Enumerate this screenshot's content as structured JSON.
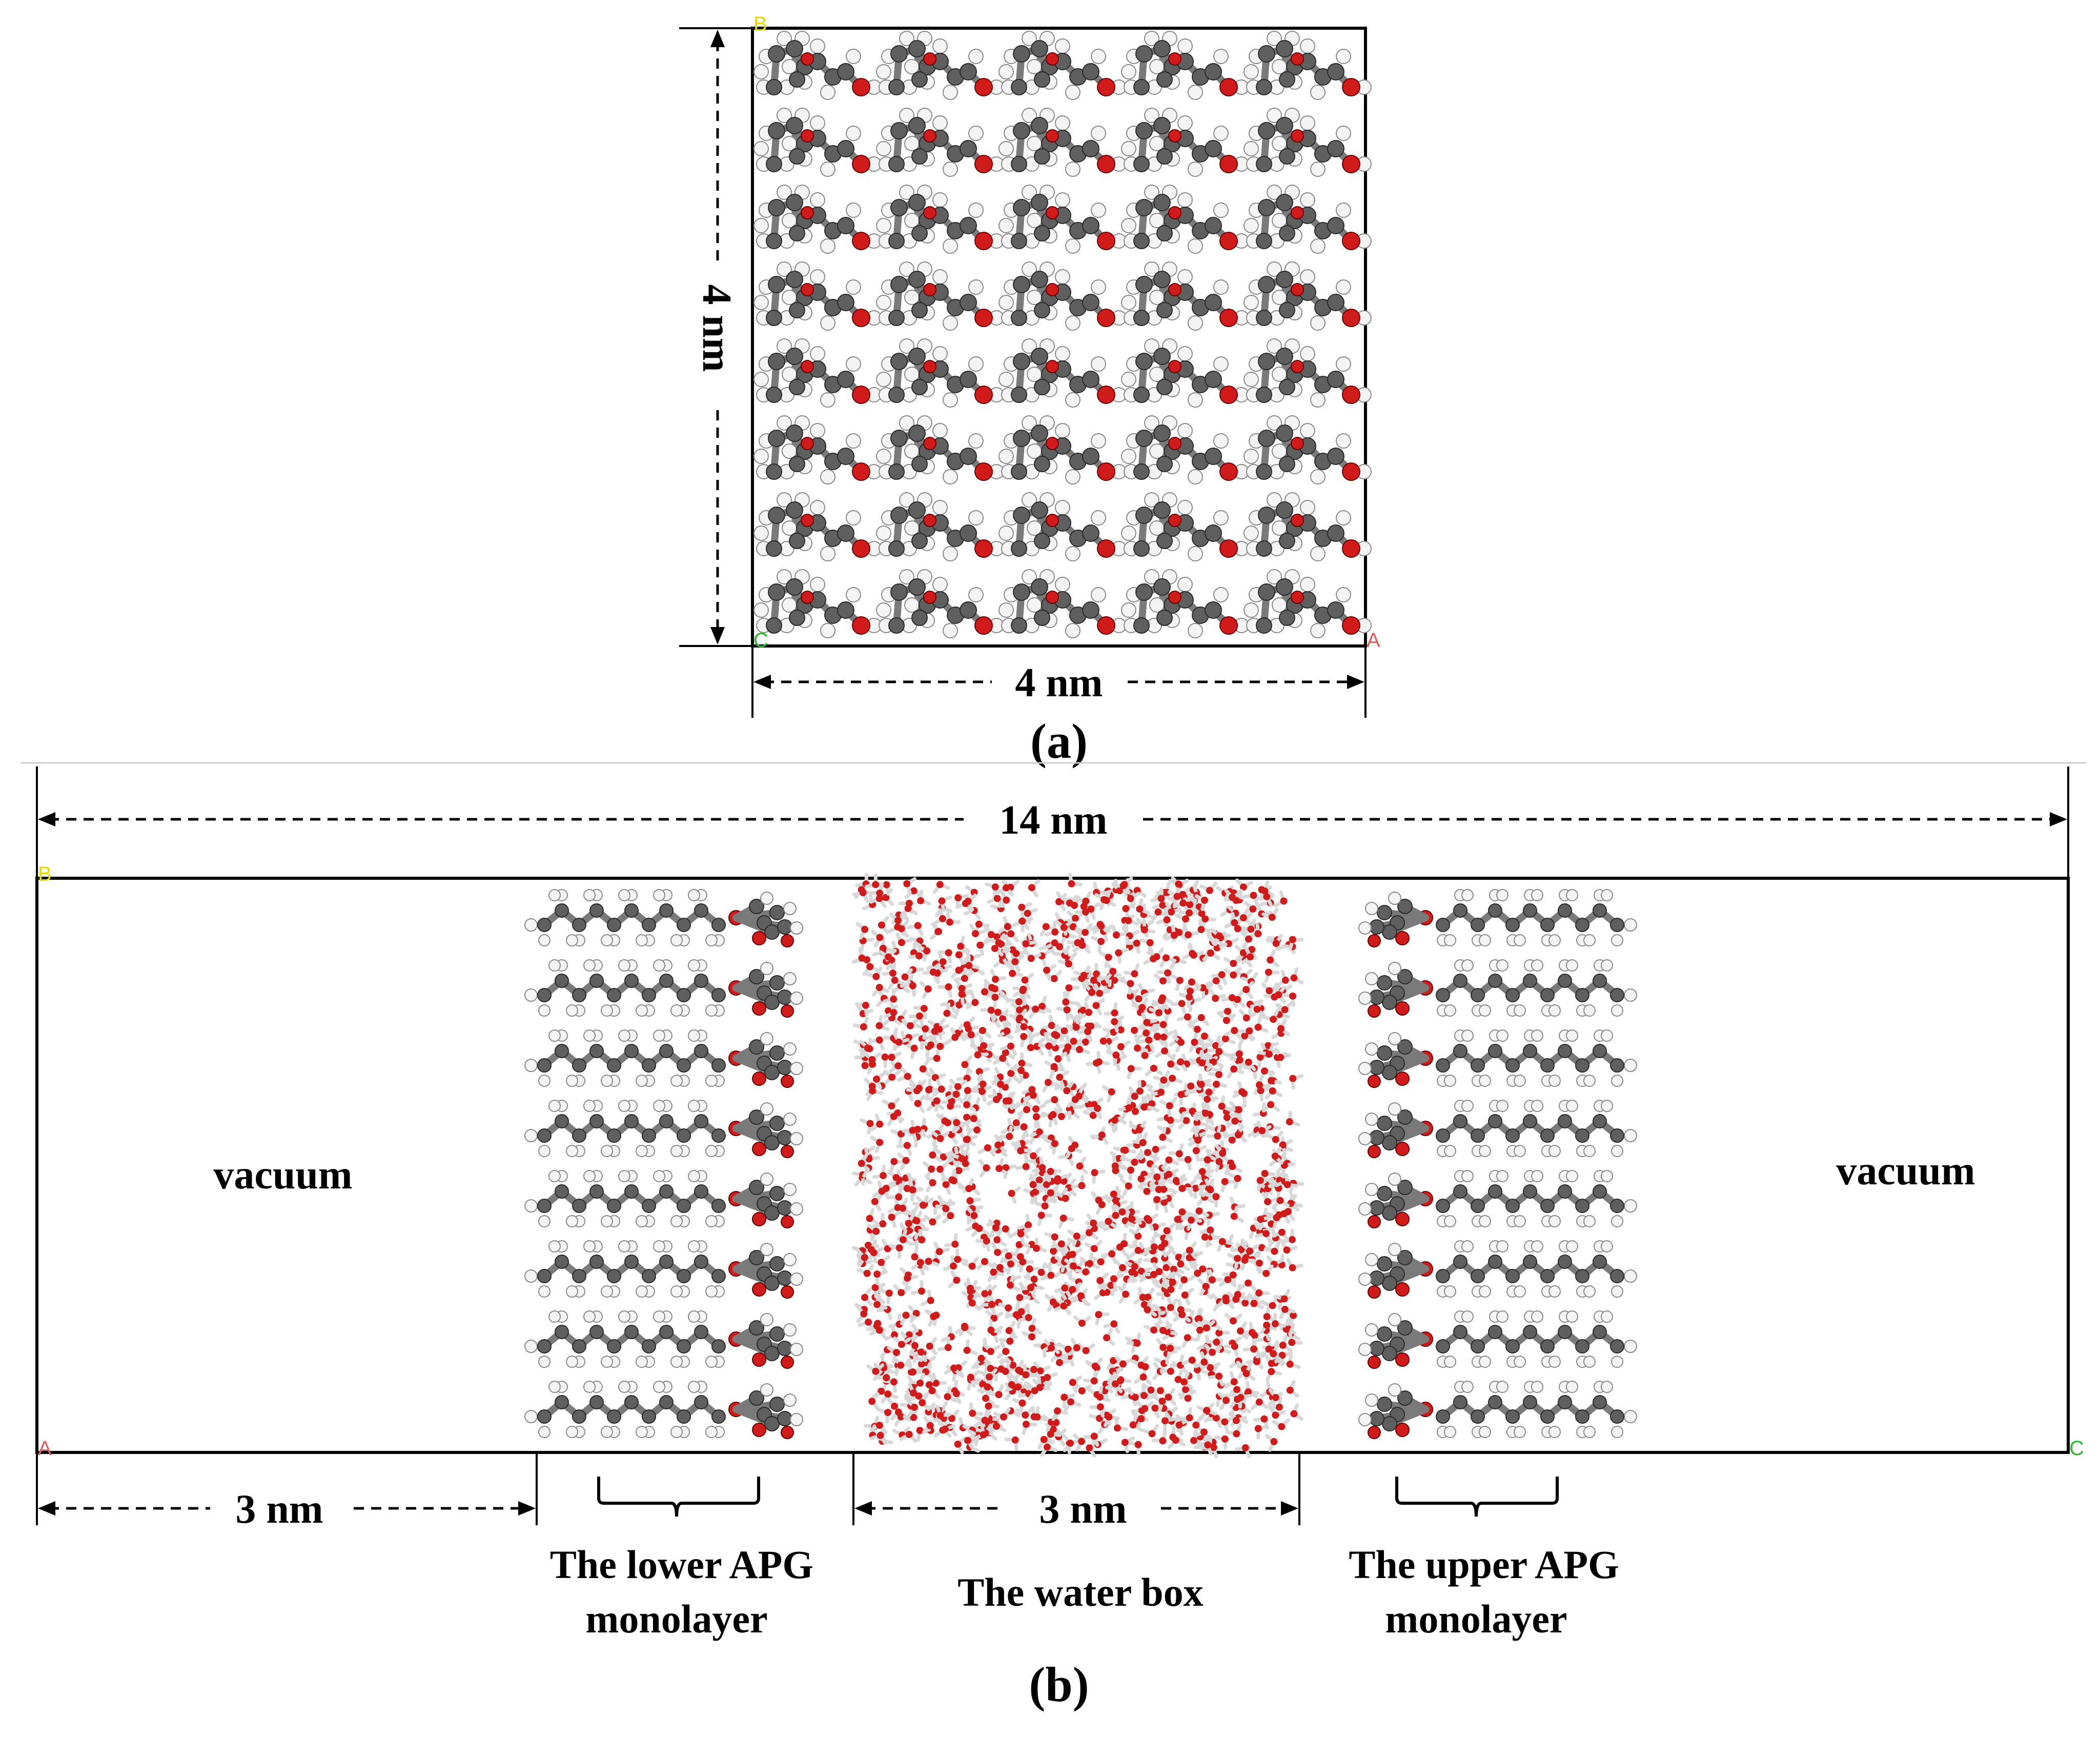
{
  "panel_a": {
    "caption": "(a)",
    "dim_vertical_label": "4 nm",
    "dim_horizontal_label": "4 nm",
    "corner_labels": {
      "top_left": "B",
      "bottom_left": "C",
      "bottom_right": "A"
    },
    "molecule_grid": {
      "rows": 8,
      "cols": 5
    }
  },
  "panel_b": {
    "caption": "(b)",
    "total_width_label": "14 nm",
    "vacuum_left_label": "vacuum",
    "vacuum_right_label": "vacuum",
    "lower_vacuum_dim_label": "3 nm",
    "water_dim_label": "3 nm",
    "lower_monolayer_label": [
      "The lower APG",
      "monolayer"
    ],
    "water_box_label": "The water box",
    "upper_monolayer_label": [
      "The upper APG",
      "monolayer"
    ],
    "corner_labels": {
      "top_left": "B",
      "bottom_left": "A",
      "bottom_right": "C"
    },
    "monolayer_rows": 8
  },
  "colors": {
    "carbon": "#5f5f5f",
    "hydrogen": "#f4f4f4",
    "oxygen": "#d11b1b",
    "corner_b": "#e8d800",
    "corner_a": "#e06060",
    "corner_c": "#2dbb2d"
  }
}
